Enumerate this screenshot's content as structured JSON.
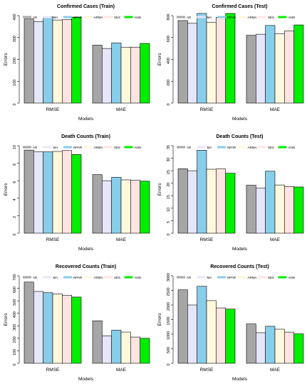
{
  "chart_data": [
    {
      "type": "bar",
      "title": "Confirmed Cases (Train)",
      "xlabel": "Models",
      "ylabel": "Errors",
      "categories": [
        "RMSE",
        "MAE"
      ],
      "ylim": [
        0,
        400
      ],
      "yticks": [
        0,
        100,
        200,
        300,
        400
      ],
      "series": [
        {
          "name": "AR",
          "values": [
            385,
            265
          ]
        },
        {
          "name": "MA",
          "values": [
            372,
            250
          ]
        },
        {
          "name": "NPAR",
          "values": [
            395,
            275
          ]
        },
        {
          "name": "ARMA",
          "values": [
            380,
            255
          ]
        },
        {
          "name": "SES",
          "values": [
            382,
            256
          ]
        },
        {
          "name": "ANN",
          "values": [
            393,
            273
          ]
        }
      ]
    },
    {
      "type": "bar",
      "title": "Confirmed Cases (Test)",
      "xlabel": "Models",
      "ylabel": "Errors",
      "categories": [
        "RMSE",
        "MAE"
      ],
      "ylim": [
        0,
        800
      ],
      "yticks": [
        0,
        200,
        400,
        600,
        800
      ],
      "series": [
        {
          "name": "AR",
          "values": [
            755,
            620
          ]
        },
        {
          "name": "MA",
          "values": [
            730,
            630
          ]
        },
        {
          "name": "NPAR",
          "values": [
            820,
            710
          ]
        },
        {
          "name": "ARMA",
          "values": [
            740,
            635
          ]
        },
        {
          "name": "SES",
          "values": [
            785,
            660
          ]
        },
        {
          "name": "ANN",
          "values": [
            820,
            715
          ]
        }
      ]
    },
    {
      "type": "bar",
      "title": "Death Counts (Train)",
      "xlabel": "Models",
      "ylabel": "Errors",
      "categories": [
        "RMSE",
        "MAE"
      ],
      "ylim": [
        0,
        10
      ],
      "yticks": [
        0,
        2,
        4,
        6,
        8,
        10
      ],
      "series": [
        {
          "name": "AR",
          "values": [
            9.5,
            6.7
          ]
        },
        {
          "name": "MA",
          "values": [
            9.3,
            6.0
          ]
        },
        {
          "name": "NPAR",
          "values": [
            9.3,
            6.4
          ]
        },
        {
          "name": "ARMA",
          "values": [
            9.35,
            6.1
          ]
        },
        {
          "name": "SES",
          "values": [
            9.45,
            6.05
          ]
        },
        {
          "name": "ANN",
          "values": [
            9.0,
            5.95
          ]
        }
      ]
    },
    {
      "type": "bar",
      "title": "Death Counts (Test)",
      "xlabel": "Models",
      "ylabel": "Errors",
      "categories": [
        "RMSE",
        "MAE"
      ],
      "ylim": [
        0,
        35
      ],
      "yticks": [
        0,
        5,
        10,
        15,
        20,
        25,
        30,
        35
      ],
      "series": [
        {
          "name": "AR",
          "values": [
            25.8,
            19.2
          ]
        },
        {
          "name": "MA",
          "values": [
            25.0,
            18.0
          ]
        },
        {
          "name": "NPAR",
          "values": [
            33.2,
            24.8
          ]
        },
        {
          "name": "ARMA",
          "values": [
            25.6,
            19.3
          ]
        },
        {
          "name": "SES",
          "values": [
            25.7,
            18.7
          ]
        },
        {
          "name": "ANN",
          "values": [
            24.0,
            18.5
          ]
        }
      ]
    },
    {
      "type": "bar",
      "title": "Recovered Counts (Train)",
      "xlabel": "Models",
      "ylabel": "Errors",
      "categories": [
        "RMSE",
        "MAE"
      ],
      "ylim": [
        0,
        700
      ],
      "yticks": [
        0,
        100,
        200,
        300,
        400,
        500,
        600,
        700
      ],
      "series": [
        {
          "name": "AR",
          "values": [
            650,
            340
          ]
        },
        {
          "name": "MA",
          "values": [
            575,
            220
          ]
        },
        {
          "name": "NPAR",
          "values": [
            565,
            265
          ]
        },
        {
          "name": "ARMA",
          "values": [
            555,
            250
          ]
        },
        {
          "name": "SES",
          "values": [
            545,
            210
          ]
        },
        {
          "name": "ANN",
          "values": [
            530,
            200
          ]
        }
      ]
    },
    {
      "type": "bar",
      "title": "Recovered Counts (Test)",
      "xlabel": "Models",
      "ylabel": "Errors",
      "categories": [
        "RMSE",
        "MAE"
      ],
      "ylim": [
        0,
        3000
      ],
      "yticks": [
        0,
        500,
        1000,
        1500,
        2000,
        2500,
        3000
      ],
      "series": [
        {
          "name": "AR",
          "values": [
            2520,
            1350
          ]
        },
        {
          "name": "MA",
          "values": [
            2000,
            1050
          ]
        },
        {
          "name": "NPAR",
          "values": [
            2640,
            1270
          ]
        },
        {
          "name": "ARMA",
          "values": [
            2150,
            1170
          ]
        },
        {
          "name": "SES",
          "values": [
            1900,
            1070
          ]
        },
        {
          "name": "ANN",
          "values": [
            1860,
            1010
          ]
        }
      ]
    }
  ],
  "colors": {
    "AR": "#a6a6a6",
    "MA": "#e6e6fa",
    "NPAR": "#87ceeb",
    "ARMA": "#fff8dc",
    "SES": "#ffe4e1",
    "ANN": "#00ee00"
  }
}
